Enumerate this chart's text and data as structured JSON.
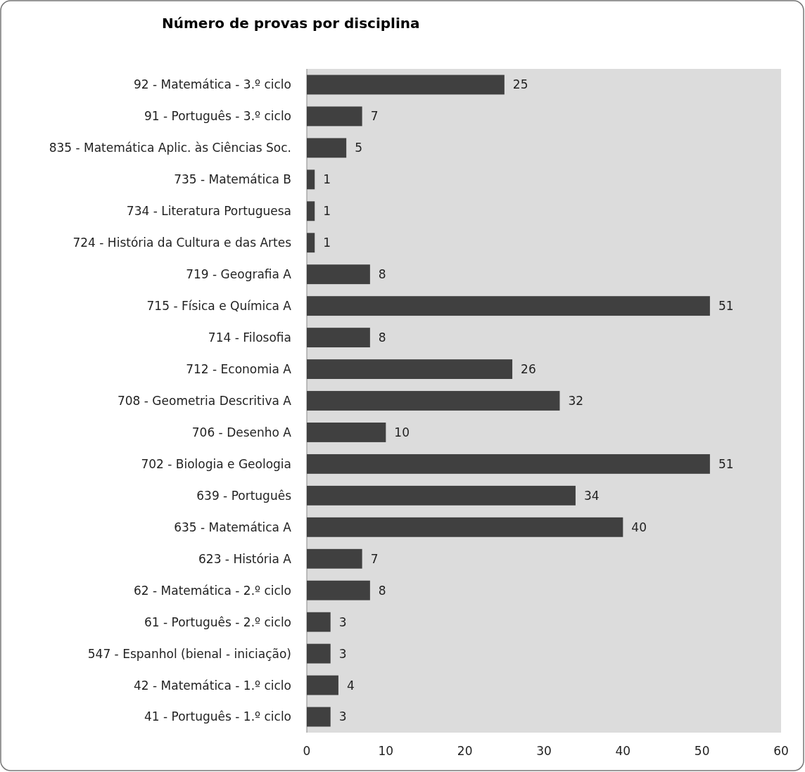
{
  "chart_data": {
    "type": "bar",
    "orientation": "horizontal",
    "title": "Número  de provas por disciplina",
    "categories": [
      "92 - Matemática - 3.º ciclo",
      "91 - Português - 3.º ciclo",
      "835 - Matemática Aplic. às Ciências Soc.",
      "735 - Matemática B",
      "734 - Literatura Portuguesa",
      "724 - História da Cultura e das Artes",
      "719 - Geografia A",
      "715 - Física e Química A",
      "714 - Filosofia",
      "712 - Economia A",
      "708 - Geometria Descritiva A",
      "706 - Desenho A",
      "702 - Biologia e Geologia",
      "639 - Português",
      "635 - Matemática A",
      "623 - História A",
      "62 - Matemática - 2.º ciclo",
      "61 - Português - 2.º ciclo",
      "547 - Espanhol (bienal - iniciação)",
      "42 - Matemática - 1.º ciclo",
      "41 - Português - 1.º ciclo"
    ],
    "values": [
      25,
      7,
      5,
      1,
      1,
      1,
      8,
      51,
      8,
      26,
      32,
      10,
      51,
      34,
      40,
      7,
      8,
      3,
      3,
      4,
      3
    ],
    "color": "#404040",
    "xlim": [
      0,
      60
    ],
    "xticks": [
      0,
      10,
      20,
      30,
      40,
      50,
      60
    ],
    "data_labels": true
  }
}
